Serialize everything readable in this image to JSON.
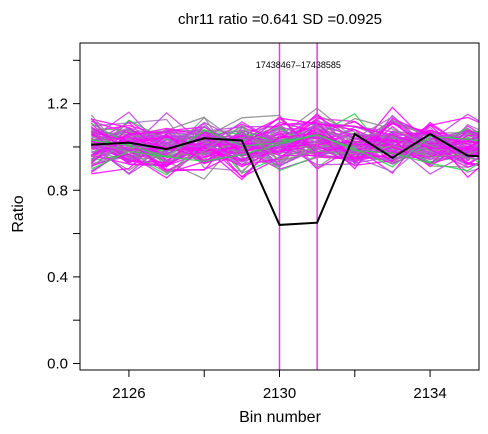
{
  "chart_data": {
    "type": "line",
    "title": "chr11 ratio =0.641 SD =0.0925",
    "xlabel": "Bin number",
    "ylabel": "Ratio",
    "xlim": [
      2124.7,
      2135.3
    ],
    "ylim": [
      -0.03,
      1.48
    ],
    "x_ticks": [
      2126,
      2128,
      2130,
      2132,
      2134
    ],
    "x_tick_labels": [
      "2126",
      "",
      "2130",
      "",
      "2134"
    ],
    "y_ticks": [
      0.0,
      0.2,
      0.4,
      0.6,
      0.8,
      1.0,
      1.2,
      1.4
    ],
    "y_tick_labels": [
      "0.0",
      "",
      "0.4",
      "",
      "0.8",
      "",
      "1.2",
      ""
    ],
    "grid": false,
    "highlight_region": {
      "x_start": 2130,
      "x_end": 2131,
      "color": "#e040e0",
      "label": "17438467–17438585"
    },
    "sample_series": {
      "x": [
        2125,
        2126,
        2127,
        2128,
        2129,
        2130,
        2131,
        2132,
        2133,
        2134,
        2135,
        2136
      ],
      "mean": [
        1.01,
        1.01,
        1.0,
        1.01,
        1.0,
        1.02,
        1.02,
        1.0,
        1.01,
        1.0,
        1.01,
        1.0
      ],
      "spread": 0.06,
      "colors": [
        "#ff00ff",
        "#c040e0",
        "#8a8a8a",
        "#2ad34a",
        "#a870c0"
      ],
      "count": 90,
      "note_color_meaning": ""
    },
    "series": [
      {
        "name": "",
        "color": "#000000",
        "x": [
          2125,
          2126,
          2127,
          2128,
          2129,
          2130,
          2131,
          2132,
          2133,
          2134,
          2135,
          2136
        ],
        "values": [
          1.01,
          1.02,
          0.99,
          1.04,
          1.03,
          0.64,
          0.65,
          1.06,
          0.95,
          1.06,
          0.96,
          0.95
        ]
      }
    ]
  }
}
